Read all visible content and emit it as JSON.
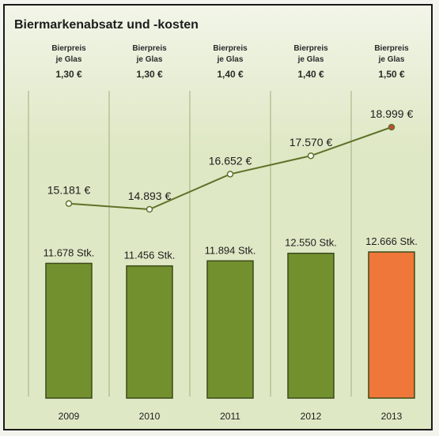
{
  "title": "Biermarkenabsatz und -kosten",
  "price_blocks": [
    {
      "line1": "Bierpreis",
      "line2": "je Glas",
      "value": "1,30 €"
    },
    {
      "line1": "Bierpreis",
      "line2": "je Glas",
      "value": "1,30 €"
    },
    {
      "line1": "Bierpreis",
      "line2": "je Glas",
      "value": "1,40 €"
    },
    {
      "line1": "Bierpreis",
      "line2": "je Glas",
      "value": "1,40 €"
    },
    {
      "line1": "Bierpreis",
      "line2": "je Glas",
      "value": "1,50 €"
    }
  ],
  "colors": {
    "bar": "#73902f",
    "bar_highlight": "#f0773a",
    "line": "#5e7228",
    "marker": "#c9483a",
    "gridline": "#9fae7d"
  },
  "chart_data": {
    "type": "bar",
    "categories": [
      "2009",
      "2010",
      "2011",
      "2012",
      "2013"
    ],
    "series": [
      {
        "type": "bar",
        "values": [
          11678,
          11456,
          11894,
          12550,
          12666
        ],
        "labels": [
          "11.678 Stk.",
          "11.456 Stk.",
          "11.894 Stk.",
          "12.550 Stk.",
          "12.666 Stk."
        ],
        "highlight_index": 4
      },
      {
        "type": "line",
        "values": [
          15181,
          14893,
          16652,
          17570,
          18999
        ],
        "labels": [
          "15.181 €",
          "14.893 €",
          "16.652 €",
          "17.570 €",
          "18.999 €"
        ]
      }
    ],
    "legend": "none",
    "grid": "vertical separators"
  }
}
